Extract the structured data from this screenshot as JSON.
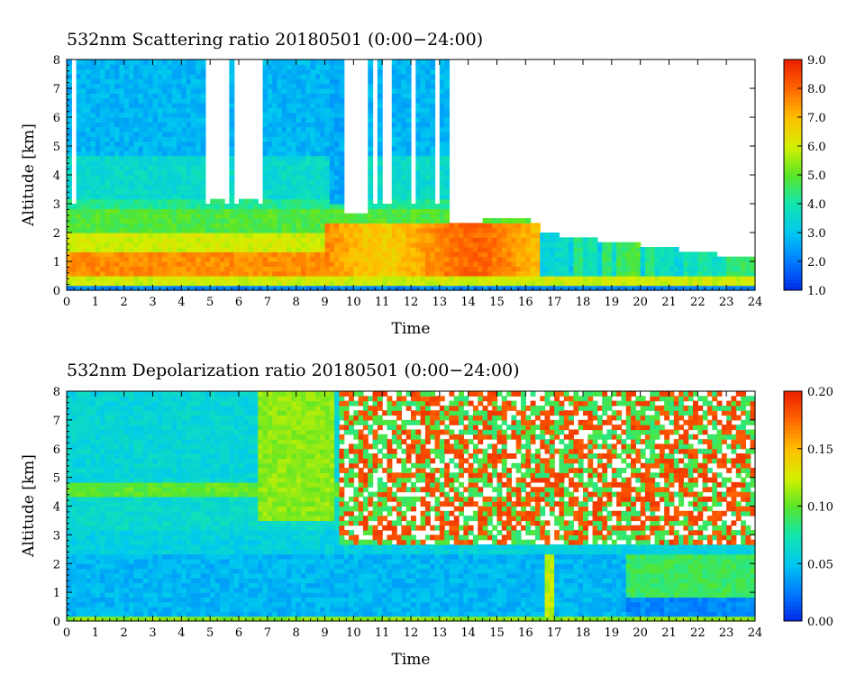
{
  "chart_data": [
    {
      "type": "heatmap",
      "title": "532nm Scattering ratio  20180501 (0:00−24:00)",
      "xlabel": "Time",
      "ylabel": "Altitude [km]",
      "xlim": [
        0,
        24
      ],
      "ylim": [
        0,
        8
      ],
      "x_ticks": [
        "0",
        "1",
        "2",
        "3",
        "4",
        "5",
        "6",
        "7",
        "8",
        "9",
        "10",
        "11",
        "12",
        "13",
        "14",
        "15",
        "16",
        "17",
        "18",
        "19",
        "20",
        "21",
        "22",
        "23",
        "24"
      ],
      "y_ticks": [
        "0",
        "1",
        "2",
        "3",
        "4",
        "5",
        "6",
        "7",
        "8"
      ],
      "colorbar": {
        "min": 1.0,
        "max": 9.0,
        "ticks": [
          "1.0",
          "2.0",
          "3.0",
          "4.0",
          "5.0",
          "6.0",
          "7.0",
          "8.0",
          "9.0"
        ]
      },
      "variable": "scattering"
    },
    {
      "type": "heatmap",
      "title": "532nm Depolarization ratio  20180501 (0:00−24:00)",
      "xlabel": "Time",
      "ylabel": "Altitude [km]",
      "xlim": [
        0,
        24
      ],
      "ylim": [
        0,
        8
      ],
      "x_ticks": [
        "0",
        "1",
        "2",
        "3",
        "4",
        "5",
        "6",
        "7",
        "8",
        "9",
        "10",
        "11",
        "12",
        "13",
        "14",
        "15",
        "16",
        "17",
        "18",
        "19",
        "20",
        "21",
        "22",
        "23",
        "24"
      ],
      "y_ticks": [
        "0",
        "1",
        "2",
        "3",
        "4",
        "5",
        "6",
        "7",
        "8"
      ],
      "colorbar": {
        "min": 0.0,
        "max": 0.2,
        "ticks": [
          "0.00",
          "0.05",
          "0.10",
          "0.15",
          "0.20"
        ]
      },
      "variable": "depolarization"
    }
  ]
}
